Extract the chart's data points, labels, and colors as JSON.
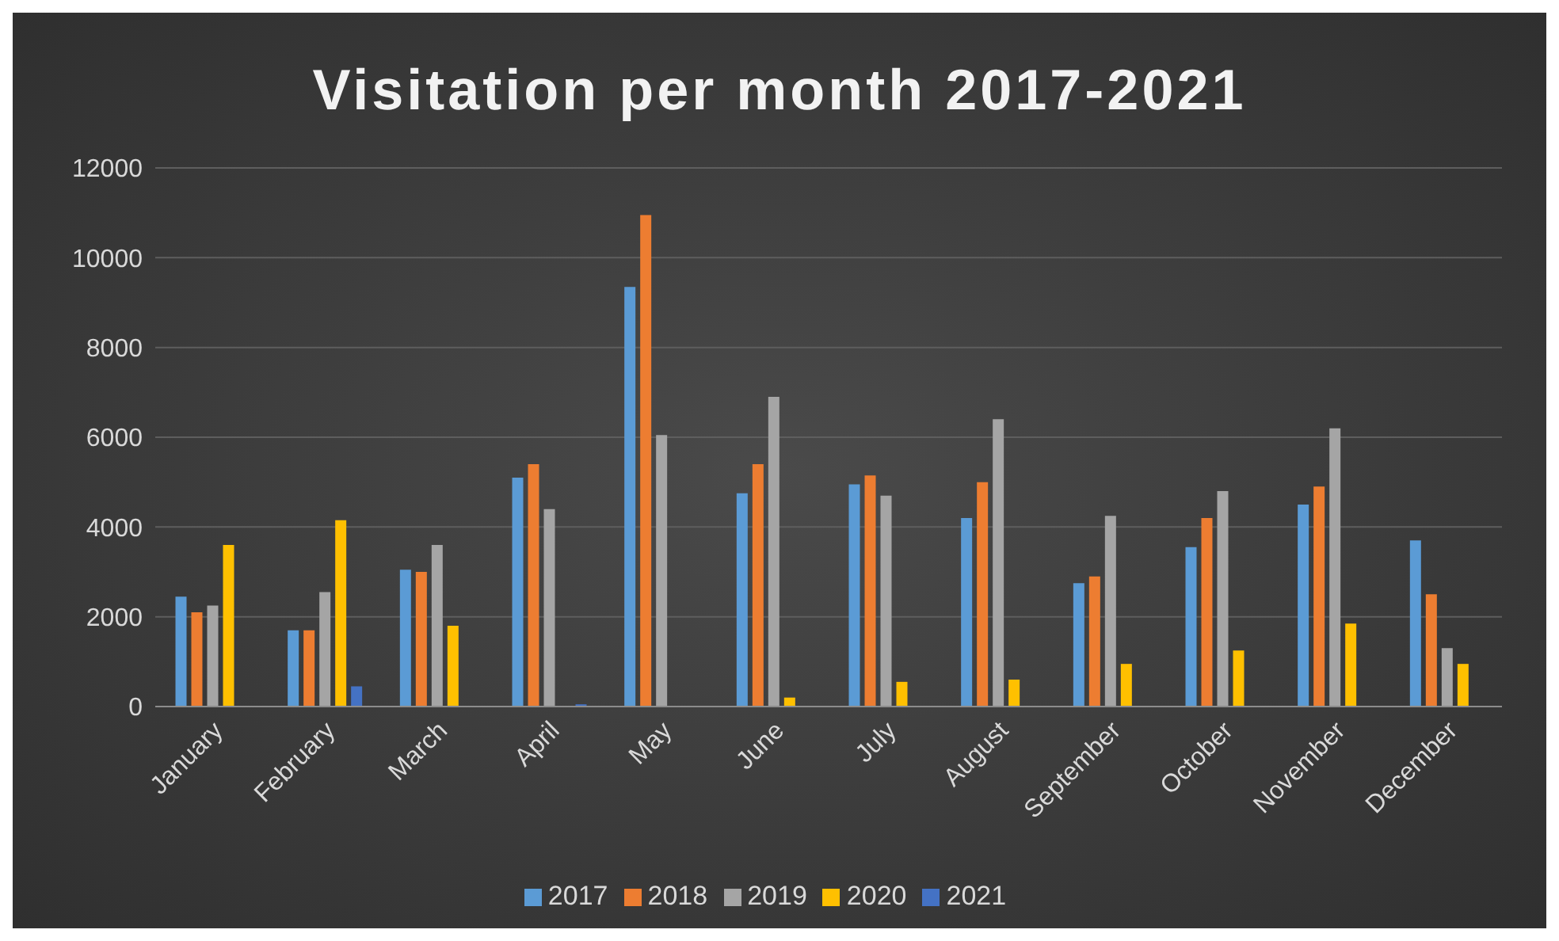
{
  "chart_data": {
    "type": "bar",
    "title": "Visitation per month 2017-2021",
    "categories": [
      "January",
      "February",
      "March",
      "April",
      "May",
      "June",
      "July",
      "August",
      "September",
      "October",
      "November",
      "December"
    ],
    "series": [
      {
        "name": "2017",
        "color": "#5b9bd5",
        "values": [
          2450,
          1700,
          3050,
          5100,
          9350,
          4750,
          4950,
          4200,
          2750,
          3550,
          4500,
          3700
        ]
      },
      {
        "name": "2018",
        "color": "#ed7d31",
        "values": [
          2100,
          1700,
          3000,
          5400,
          10950,
          5400,
          5150,
          5000,
          2900,
          4200,
          4900,
          2500
        ]
      },
      {
        "name": "2019",
        "color": "#a5a5a5",
        "values": [
          2250,
          2550,
          3600,
          4400,
          6050,
          6900,
          4700,
          6400,
          4250,
          4800,
          6200,
          1300
        ]
      },
      {
        "name": "2020",
        "color": "#ffc000",
        "values": [
          3600,
          4150,
          1800,
          0,
          0,
          200,
          550,
          600,
          950,
          1250,
          1850,
          950
        ]
      },
      {
        "name": "2021",
        "color": "#4472c4",
        "values": [
          null,
          450,
          null,
          50,
          null,
          null,
          null,
          null,
          null,
          null,
          null,
          null
        ]
      }
    ],
    "ylim": [
      0,
      12000
    ],
    "yticks": [
      0,
      2000,
      4000,
      6000,
      8000,
      10000,
      12000
    ],
    "grid": "y",
    "legend": "bottom"
  }
}
